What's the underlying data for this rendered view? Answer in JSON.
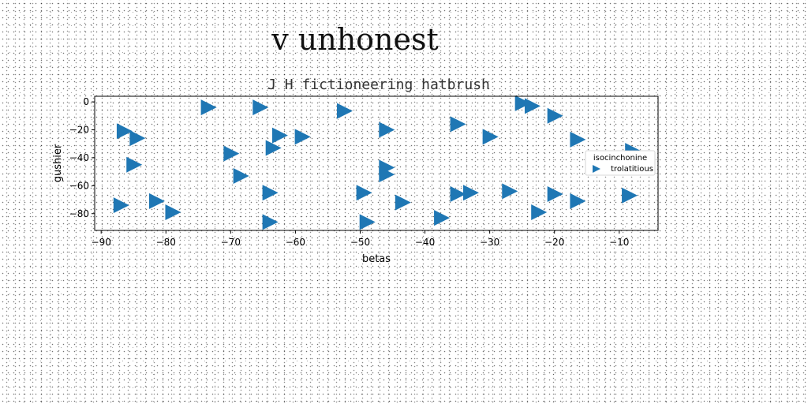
{
  "figure_title": "v unhonest",
  "chart_data": {
    "type": "scatter",
    "title": "J H fictioneering hatbrush",
    "xlabel": "betas",
    "ylabel": "gushier",
    "xlim": [
      -91,
      -4
    ],
    "ylim": [
      -92,
      4
    ],
    "xticks": [
      -90,
      -80,
      -70,
      -60,
      -50,
      -40,
      -30,
      -20,
      -10
    ],
    "yticks": [
      0,
      -20,
      -40,
      -60,
      -80
    ],
    "grid": false,
    "legend": {
      "title": "isocinchonine",
      "placement": "center-right"
    },
    "marker": "triangle-right",
    "colors": {
      "series": "#1f77b4"
    },
    "series": [
      {
        "name": "trolatitious",
        "points": [
          [
            -73.5,
            -4
          ],
          [
            -65.5,
            -4
          ],
          [
            -52.5,
            -6.5
          ],
          [
            -25,
            -1
          ],
          [
            -23.5,
            -3
          ],
          [
            -20,
            -10
          ],
          [
            -86.5,
            -21
          ],
          [
            -84.5,
            -26
          ],
          [
            -62.5,
            -24
          ],
          [
            -59,
            -25
          ],
          [
            -46,
            -20
          ],
          [
            -35,
            -16
          ],
          [
            -30,
            -25
          ],
          [
            -16.5,
            -27
          ],
          [
            -63.5,
            -33
          ],
          [
            -70,
            -37
          ],
          [
            -85,
            -45
          ],
          [
            -46,
            -47
          ],
          [
            -46,
            -52
          ],
          [
            -68.5,
            -53
          ],
          [
            -8,
            -35
          ],
          [
            -87,
            -74
          ],
          [
            -81.5,
            -71
          ],
          [
            -79,
            -79
          ],
          [
            -64,
            -65
          ],
          [
            -49.5,
            -65
          ],
          [
            -43.5,
            -72
          ],
          [
            -35,
            -66
          ],
          [
            -33,
            -65
          ],
          [
            -27,
            -64
          ],
          [
            -20,
            -66
          ],
          [
            -16.5,
            -71
          ],
          [
            -22.5,
            -79
          ],
          [
            -37.5,
            -83
          ],
          [
            -49,
            -86
          ],
          [
            -64,
            -86
          ],
          [
            -8.5,
            -67
          ]
        ]
      }
    ]
  }
}
